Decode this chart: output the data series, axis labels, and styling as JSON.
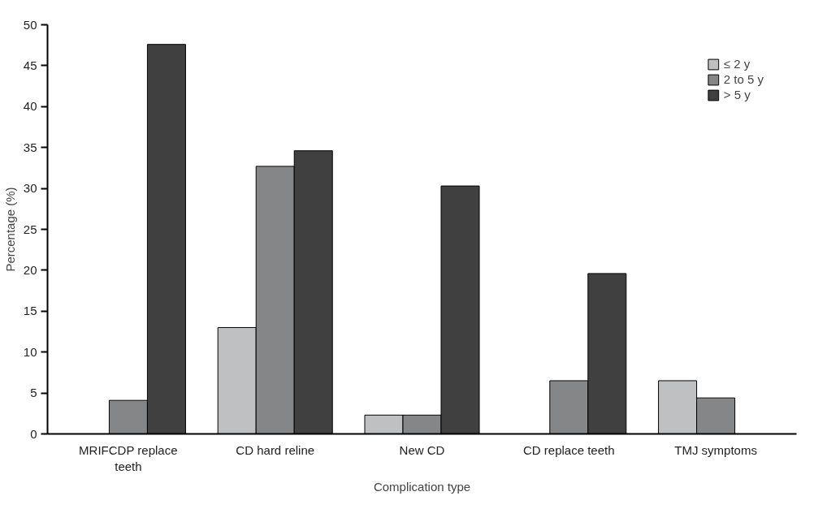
{
  "chart_data": {
    "type": "bar",
    "xlabel": "Complication type",
    "ylabel": "Percentage (%)",
    "categories": [
      "MRIFCDP replace teeth",
      "CD hard reline",
      "New CD",
      "CD replace teeth",
      "TMJ symptoms"
    ],
    "series": [
      {
        "name": "≤ 2 y",
        "color": "#bfc0c2",
        "values": [
          null,
          13.0,
          2.3,
          null,
          6.5
        ]
      },
      {
        "name": "2 to 5 y",
        "color": "#858688",
        "values": [
          4.1,
          32.7,
          2.3,
          6.5,
          4.4
        ]
      },
      {
        "name": "> 5 y",
        "color": "#404040",
        "values": [
          47.6,
          34.6,
          30.3,
          19.6,
          null
        ]
      }
    ],
    "ylim": [
      0,
      50
    ],
    "yticks": [
      0,
      5,
      10,
      15,
      20,
      25,
      30,
      35,
      40,
      45,
      50
    ],
    "grid": false,
    "legend": "top right"
  }
}
